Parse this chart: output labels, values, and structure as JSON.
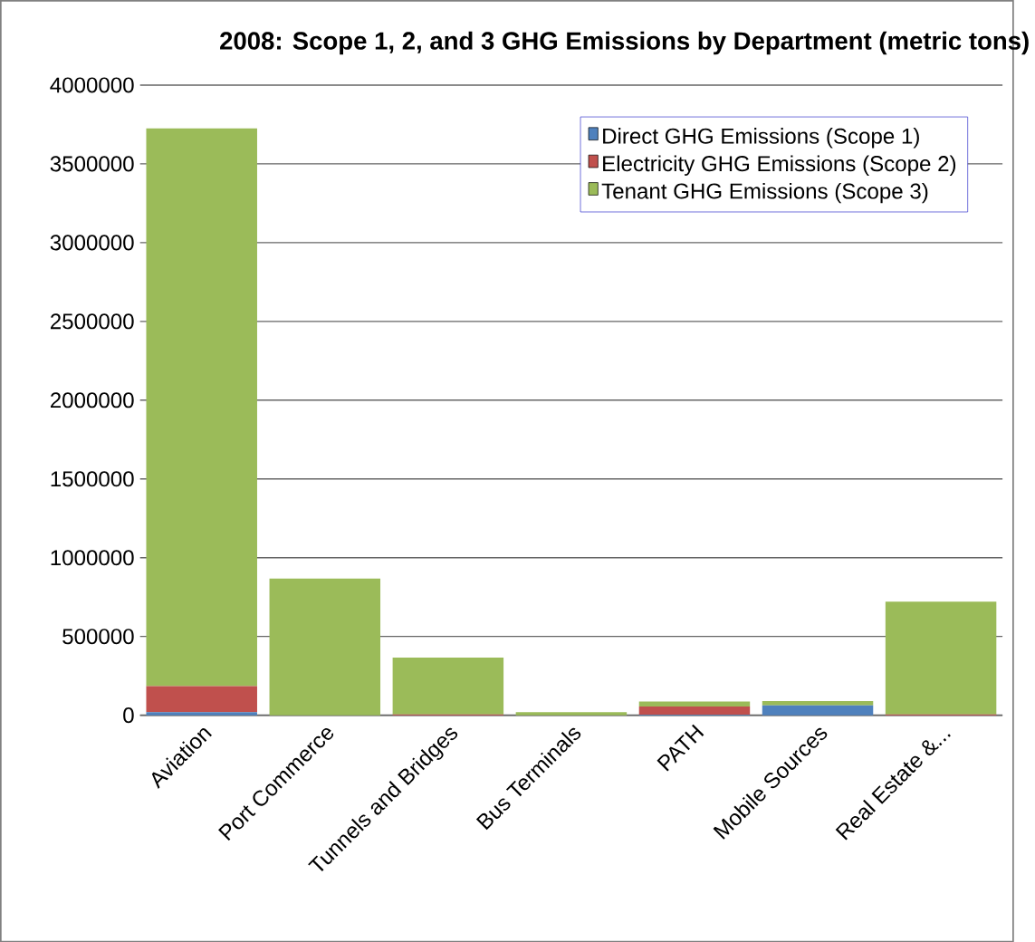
{
  "chart_data": {
    "type": "bar",
    "stacked": true,
    "title": "2008: Scope 1, 2, and 3 GHG Emissions by Department (metric tons)",
    "categories": [
      "Aviation",
      "Port Commerce",
      "Tunnels and Bridges",
      "Bus Terminals",
      "PATH",
      "Mobile Sources",
      "Real Estate &..."
    ],
    "series": [
      {
        "name": "Direct GHG Emissions (Scope 1)",
        "color": "#4f81bd",
        "values": [
          20000,
          0,
          0,
          0,
          3000,
          62000,
          0
        ]
      },
      {
        "name": "Electricity GHG Emissions (Scope 2)",
        "color": "#c0504d",
        "values": [
          165000,
          0,
          5000,
          0,
          53000,
          0,
          5000
        ]
      },
      {
        "name": "Tenant GHG Emissions (Scope 3)",
        "color": "#9bbb59",
        "values": [
          3540000,
          868000,
          361000,
          20000,
          31000,
          28000,
          716000
        ]
      }
    ],
    "ylim": [
      0,
      4000000
    ],
    "yticks": [
      0,
      500000,
      1000000,
      1500000,
      2000000,
      2500000,
      3000000,
      3500000,
      4000000
    ],
    "grid": "y",
    "legend": "top right"
  }
}
